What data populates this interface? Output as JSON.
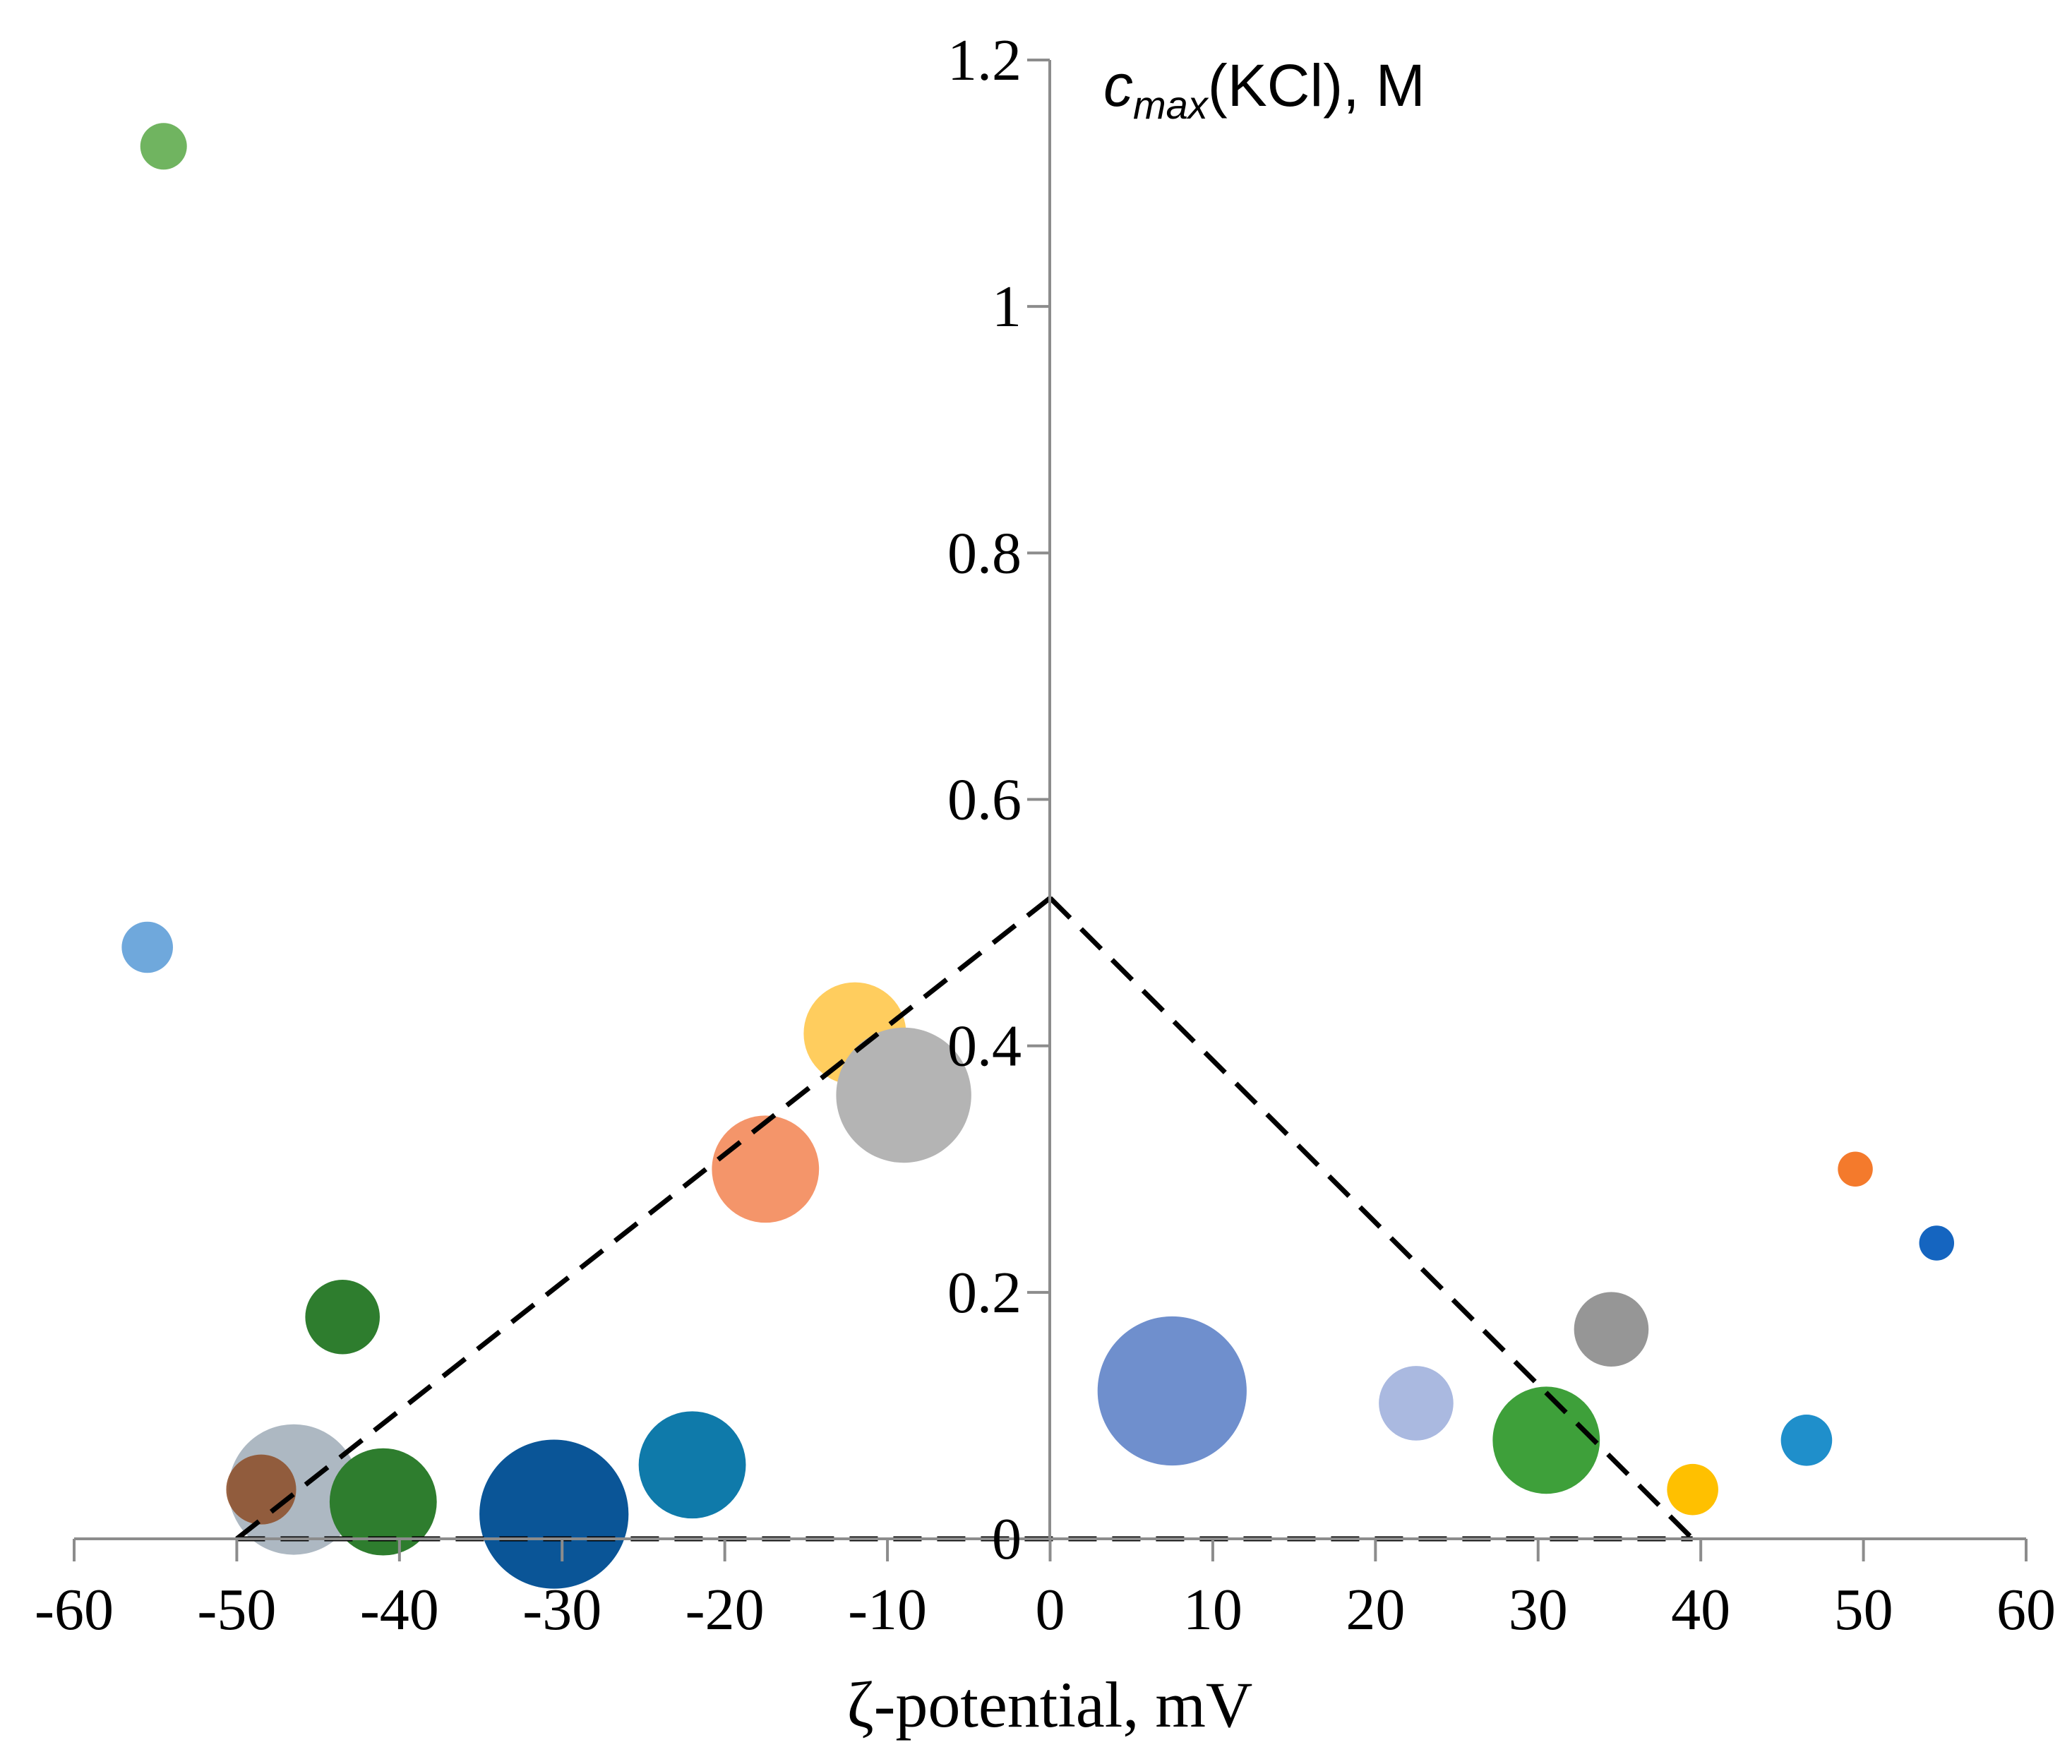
{
  "chart_data": {
    "type": "scatter",
    "variant": "bubble",
    "title": "",
    "xlabel": "ζ-potential, mV",
    "ylabel": {
      "symbol": "c",
      "subscript": "max",
      "rest": "(KCl), M"
    },
    "xlim": [
      -60,
      60
    ],
    "ylim": [
      0,
      1.2
    ],
    "x_ticks": [
      -60,
      -50,
      -40,
      -30,
      -20,
      -10,
      0,
      10,
      20,
      30,
      40,
      50,
      60
    ],
    "x_tick_labels": [
      "-60",
      "-50",
      "-40",
      "-30",
      "-20",
      "-10",
      "0",
      "10",
      "20",
      "30",
      "40",
      "50",
      "60"
    ],
    "y_ticks": [
      0,
      0.2,
      0.4,
      0.6,
      0.8,
      1.0,
      1.2
    ],
    "y_tick_labels": [
      "0",
      "0.2",
      "0.4",
      "0.6",
      "0.8",
      "1",
      "1.2"
    ],
    "grid": false,
    "points": [
      {
        "x": -54.5,
        "y": 1.13,
        "size": 1.0,
        "color": "#70b460"
      },
      {
        "x": -55.5,
        "y": 0.48,
        "size": 1.1,
        "color": "#6fa8dc"
      },
      {
        "x": -43.5,
        "y": 0.18,
        "size": 1.6,
        "color": "#2e7d2e"
      },
      {
        "x": -46.5,
        "y": 0.04,
        "size": 2.8,
        "color": "#8a9aa8",
        "opacity": 0.7
      },
      {
        "x": -48.5,
        "y": 0.04,
        "size": 1.5,
        "color": "#ed7d31",
        "opacity": 0.6
      },
      {
        "x": -48.5,
        "y": 0.04,
        "size": 1.5,
        "color": "#7b4a2e",
        "opacity": 0.75
      },
      {
        "x": -41.0,
        "y": 0.03,
        "size": 2.3,
        "color": "#2e7d2e"
      },
      {
        "x": -30.5,
        "y": 0.02,
        "size": 3.2,
        "color": "#0a5597"
      },
      {
        "x": -22.0,
        "y": 0.06,
        "size": 2.3,
        "color": "#0f7aaa"
      },
      {
        "x": -17.5,
        "y": 0.3,
        "size": 2.3,
        "color": "#f4956a"
      },
      {
        "x": -12.0,
        "y": 0.41,
        "size": 2.2,
        "color": "#ffcd5e"
      },
      {
        "x": -9.0,
        "y": 0.36,
        "size": 2.9,
        "color": "#b4b4b4"
      },
      {
        "x": 7.5,
        "y": 0.12,
        "size": 3.2,
        "color": "#6f8fcd"
      },
      {
        "x": 22.5,
        "y": 0.11,
        "size": 1.6,
        "color": "#aab9e0"
      },
      {
        "x": 30.5,
        "y": 0.08,
        "size": 2.3,
        "color": "#3ea03a"
      },
      {
        "x": 34.5,
        "y": 0.17,
        "size": 1.6,
        "color": "#969696"
      },
      {
        "x": 39.5,
        "y": 0.04,
        "size": 1.1,
        "color": "#ffc000"
      },
      {
        "x": 46.5,
        "y": 0.08,
        "size": 1.1,
        "color": "#1f8fcb"
      },
      {
        "x": 49.5,
        "y": 0.3,
        "size": 0.75,
        "color": "#f47a2c"
      },
      {
        "x": 54.5,
        "y": 0.24,
        "size": 0.75,
        "color": "#1565c0"
      }
    ],
    "annotations": [
      {
        "type": "dashed-line",
        "from": [
          -50,
          0
        ],
        "to": [
          0,
          0.52
        ]
      },
      {
        "type": "dashed-line",
        "from": [
          0,
          0.52
        ],
        "to": [
          39.5,
          0
        ]
      },
      {
        "type": "dashed-line",
        "from": [
          -50,
          0
        ],
        "to": [
          39.5,
          0
        ]
      }
    ],
    "colors": {
      "axis": "#8c8c8c",
      "dashed": "#000000"
    }
  }
}
